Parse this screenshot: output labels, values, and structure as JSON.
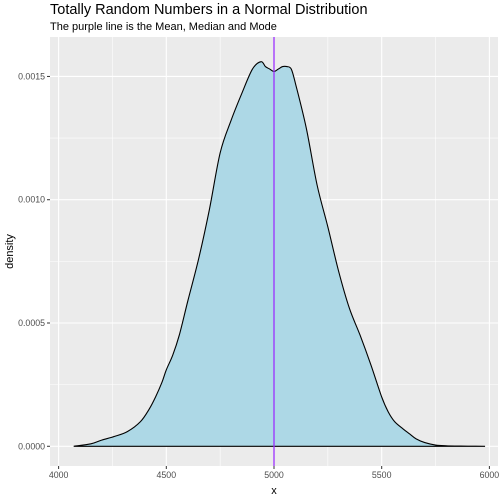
{
  "chart_data": {
    "type": "area",
    "title": "Totally Random Numbers in a Normal Distribution",
    "subtitle": "The purple line is the Mean, Median and Mode",
    "xlabel": "x",
    "ylabel": "density",
    "xlim": [
      3960,
      6040
    ],
    "ylim": [
      -8e-05,
      0.00166
    ],
    "x_ticks": [
      4000,
      4500,
      5000,
      5500,
      6000
    ],
    "x_tick_labels": [
      "4000",
      "4500",
      "5000",
      "5500",
      "6000"
    ],
    "y_ticks": [
      0.0,
      0.0005,
      0.001,
      0.0015
    ],
    "y_tick_labels": [
      "0.0000",
      "0.0005",
      "0.0010",
      "0.0015"
    ],
    "grid": true,
    "series": [
      {
        "x": [
          4070,
          4150,
          4200,
          4260,
          4320,
          4380,
          4420,
          4450,
          4480,
          4500,
          4530,
          4560,
          4600,
          4650,
          4700,
          4750,
          4800,
          4850,
          4900,
          4940,
          4960,
          4980,
          5000,
          5020,
          5040,
          5060,
          5080,
          5100,
          5150,
          5200,
          5250,
          5300,
          5350,
          5400,
          5450,
          5500,
          5530,
          5560,
          5600,
          5630,
          5660,
          5700,
          5750,
          5800,
          5850,
          5900,
          5980
        ],
        "y": [
          0.0,
          1e-05,
          2.5e-05,
          4e-05,
          6e-05,
          0.0001,
          0.00015,
          0.0002,
          0.00026,
          0.00031,
          0.00037,
          0.00045,
          0.00059,
          0.00076,
          0.00096,
          0.00119,
          0.00132,
          0.00143,
          0.00153,
          0.00156,
          0.00154,
          0.00153,
          0.00152,
          0.00153,
          0.00154,
          0.00154,
          0.00153,
          0.00147,
          0.00129,
          0.00106,
          0.00089,
          0.00071,
          0.00056,
          0.00045,
          0.00033,
          0.0002,
          0.00014,
          0.0001,
          7e-05,
          5e-05,
          3e-05,
          1.5e-05,
          5e-06,
          2e-06,
          1e-06,
          5e-07,
          0.0
        ]
      }
    ],
    "mean_line_x": 5000,
    "colors": {
      "fill": "#add8e6",
      "stroke": "#000000",
      "mean_line": "#9b30ff",
      "panel": "#ebebeb",
      "grid_major": "#ffffff"
    }
  }
}
